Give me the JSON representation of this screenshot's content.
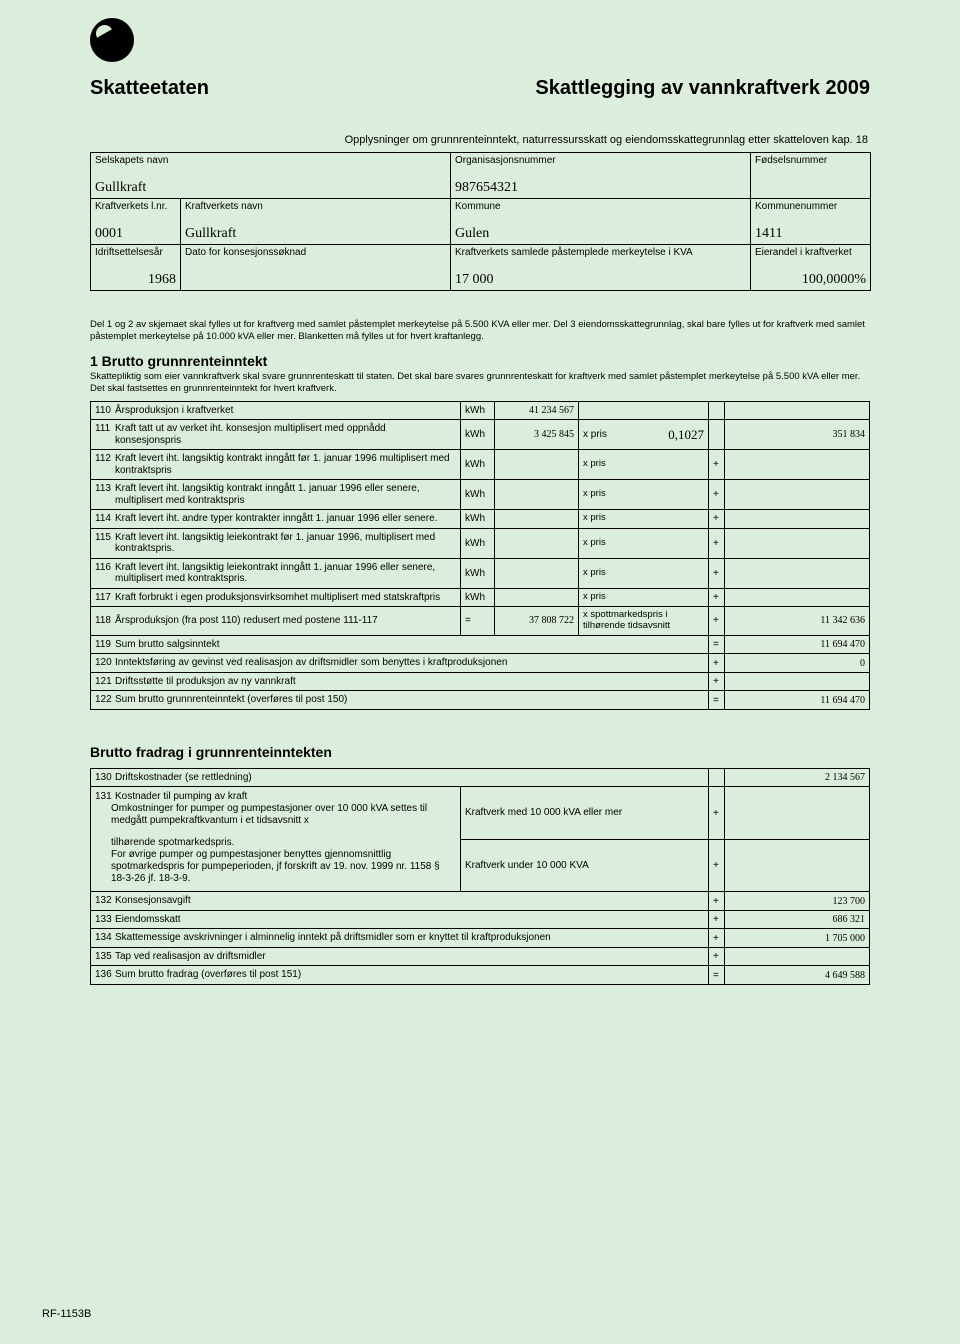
{
  "colors": {
    "page_bg": "#dbeedb",
    "border": "#000000",
    "text": "#000000"
  },
  "logo": {
    "shape": "circle",
    "name": "skatteetaten-mark"
  },
  "header": {
    "agency": "Skatteetaten",
    "title": "Skattlegging av vannkraftverk 2009"
  },
  "subtitle": "Opplysninger om grunnrenteinntekt, naturressursskatt og eiendomsskattegrunnlag etter skatteloven kap. 18",
  "company_box": {
    "row1": {
      "selskap_label": "Selskapets  navn",
      "selskap_val": "Gullkraft",
      "orgnr_label": "Organisasjonsnummer",
      "orgnr_val": "987654321",
      "fnr_label": "Fødselsnummer",
      "fnr_val": ""
    },
    "row2": {
      "lnr_label": "Kraftverkets  l.nr.",
      "lnr_val": "0001",
      "navn_label": "Kraftverkets  navn",
      "navn_val": "Gullkraft",
      "kommune_label": "Kommune",
      "kommune_val": "Gulen",
      "komnr_label": "Kommunenummer",
      "komnr_val": "1411"
    },
    "row3": {
      "idrift_label": "Idriftsettelsesår",
      "idrift_val": "1968",
      "dato_label": "Dato  for  konsesjonssøknad",
      "dato_val": "",
      "merke_label": "Kraftverkets  samlede  påstemplede  merkeytelse  i  KVA",
      "merke_val": "17 000",
      "eier_label": "Eierandel  i  kraftverket",
      "eier_val": "100,0000%"
    }
  },
  "note": "Del 1 og 2 av skjemaet skal fylles ut for kraftverg med samlet påstemplet merkeytelse på 5.500 KVA eller mer. Del 3 eiendomsskattegrunnlag, skal bare fylles ut for kraftverk med samlet påstemplet merkeytelse på 10.000 kVA eller mer. Blanketten må fylles ut for hvert kraftanlegg.",
  "sec1": {
    "title": "1 Brutto grunnrenteinntekt",
    "sub": "Skattepliktig som eier vannkraftverk skal svare grunnrenteskatt til staten. Det skal bare svares grunnrenteskatt for kraftverk med samlet påstemplet merkeytelse på 5.500 kVA eller mer. Det skal fastsettes en grunnrenteinntekt for hvert kraftverk.",
    "cols": {
      "unit": "kWh",
      "xpris": "x pris",
      "xspot": "x spottmarkedspris i tilhørende  tidsavsnitt",
      "eq": "=",
      "plus": "+"
    },
    "rows": [
      {
        "n": "110",
        "d": "Årsproduksjon  i  kraftverket",
        "u": "kWh",
        "v1": "41 234 567",
        "c2": "",
        "op": "",
        "v2": ""
      },
      {
        "n": "111",
        "d": "Kraft tatt ut av verket iht. konsesjon multiplisert med oppnådd konsesjonspris",
        "u": "kWh",
        "v1": "3 425 845",
        "c2l": "x pris",
        "c2v": "0,1027",
        "op": "",
        "v2": "351 834"
      },
      {
        "n": "112",
        "d": "Kraft levert iht. langsiktig kontrakt inngått før 1. januar 1996 multiplisert  med  kontraktspris",
        "u": "kWh",
        "v1": "",
        "c2": "x pris",
        "op": "+",
        "v2": ""
      },
      {
        "n": "113",
        "d": "Kraft levert iht. langsiktig kontrakt inngått 1. januar 1996 eller senere, multiplisert  med  kontraktspris",
        "u": "kWh",
        "v1": "",
        "c2": "x pris",
        "op": "+",
        "v2": ""
      },
      {
        "n": "114",
        "d": "Kraft levert iht. andre typer kontrakter inngått 1. januar 1996 eller senere.",
        "u": "kWh",
        "v1": "",
        "c2": "x pris",
        "op": "+",
        "v2": ""
      },
      {
        "n": "115",
        "d": "Kraft levert iht. langsiktig leiekontrakt før 1. januar 1996, multiplisert  med  kontraktspris.",
        "u": "kWh",
        "v1": "",
        "c2": "x pris",
        "op": "+",
        "v2": ""
      },
      {
        "n": "116",
        "d": "Kraft levert iht. langsiktig leiekontrakt inngått 1. januar 1996 eller senere, multiplisert med kontraktspris.",
        "u": "kWh",
        "v1": "",
        "c2": "x pris",
        "op": "+",
        "v2": ""
      },
      {
        "n": "117",
        "d": "Kraft forbrukt i egen produksjonsvirksomhet multiplisert med statskraftpris",
        "u": "kWh",
        "v1": "",
        "c2": "x pris",
        "op": "+",
        "v2": ""
      },
      {
        "n": "118",
        "d": "Årsproduksjon (fra post 110) redusert med postene 111-117",
        "u": "=",
        "v1": "37 808 722",
        "c2": "x spottmarkedspris i tilhørende  tidsavsnitt",
        "op": "+",
        "v2": "11 342 636"
      }
    ],
    "rows2": [
      {
        "n": "119",
        "d": "Sum  brutto  salgsinntekt",
        "op": "=",
        "v": "11 694 470"
      },
      {
        "n": "120",
        "d": "Inntektsføring av gevinst ved realisasjon av driftsmidler som benyttes i kraftproduksjonen",
        "op": "+",
        "v": "0"
      },
      {
        "n": "121",
        "d": "Driftsstøtte  til  produksjon  av  ny  vannkraft",
        "op": "+",
        "v": ""
      },
      {
        "n": "122",
        "d": "Sum brutto grunnrenteinntekt (overføres til post 150)",
        "op": "=",
        "v": "11 694 470"
      }
    ]
  },
  "sec2": {
    "title": "Brutto fradrag i grunnrenteinntekten",
    "r130": {
      "n": "130",
      "d": "Driftskostnader  (se  rettledning)",
      "v": "2 134 567"
    },
    "r131": {
      "n": "131",
      "d": "Kostnader til pumping av kraft",
      "sub1": "Omkostninger for pumper og pumpestasjoner over 10 000 kVA settes til medgått pumpekraftkvantum i et tidsavsnitt x",
      "sub2": "tilhørende spotmarkedspris.\nFor øvrige pumper og pumpestasjoner benyttes gjennomsnittlig spotmarkedspris for pumpeperioden, jf forskrift av 19. nov. 1999 nr. 1158 § 18-3-26 jf. 18-3-9.",
      "cat1": "Kraftverk med 10 000 kVA eller mer",
      "cat2": "Kraftverk under 10 000 KVA"
    },
    "rowsB": [
      {
        "n": "132",
        "d": "Konsesjonsavgift",
        "op": "+",
        "v": "123 700"
      },
      {
        "n": "133",
        "d": "Eiendomsskatt",
        "op": "+",
        "v": "686 321"
      },
      {
        "n": "134",
        "d": "Skattemessige avskrivninger i alminnelig inntekt på driftsmidler som er knyttet til kraftproduksjonen",
        "op": "+",
        "v": "1 705 000"
      },
      {
        "n": "135",
        "d": "Tap ved realisasjon av driftsmidler",
        "op": "+",
        "v": ""
      },
      {
        "n": "136",
        "d": "Sum brutto fradrag (overføres til post 151)",
        "op": "=",
        "v": "4 649 588"
      }
    ]
  },
  "form_code": "RF-1153B"
}
